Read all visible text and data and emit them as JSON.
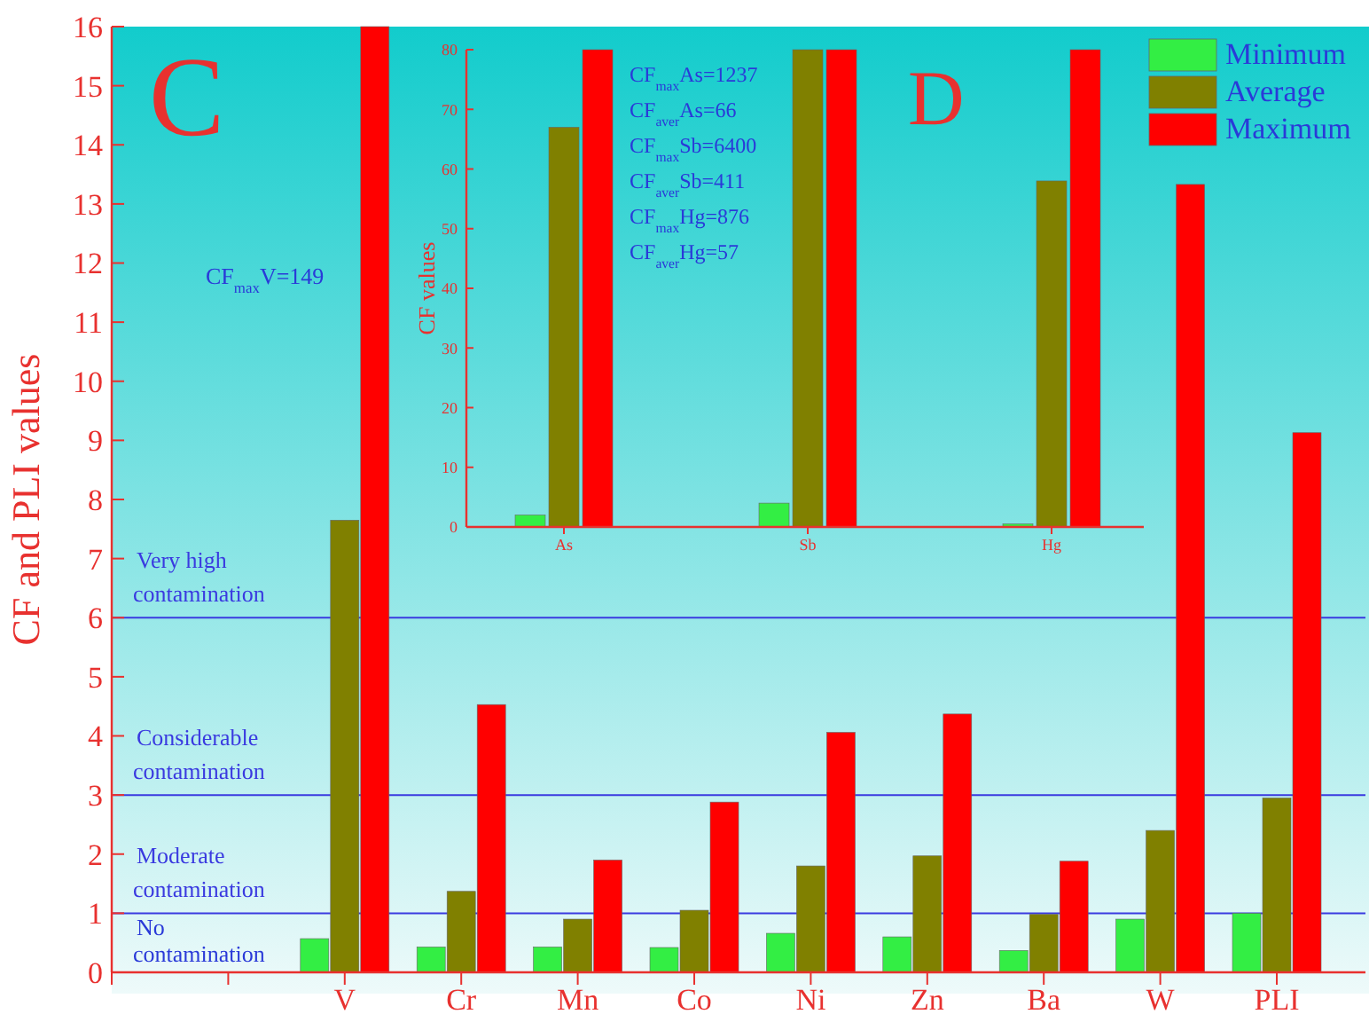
{
  "chart_data": [
    {
      "type": "bar",
      "ylabel": "CF and PLI values",
      "categories": [
        null,
        null,
        "V",
        "Cr",
        "Mn",
        "Co",
        "Ni",
        "Zn",
        "Ba",
        "W",
        "PLI"
      ],
      "series": [
        {
          "name": "Minimum",
          "color": "#33ee44",
          "values": [
            null,
            null,
            0.57,
            0.43,
            0.43,
            0.42,
            0.66,
            0.6,
            0.37,
            0.9,
            1.0
          ]
        },
        {
          "name": "Average",
          "color": "#808000",
          "values": [
            null,
            null,
            7.65,
            1.37,
            0.9,
            1.05,
            1.8,
            1.97,
            0.98,
            2.4,
            2.95
          ]
        },
        {
          "name": "Maximum",
          "color": "#ff0000",
          "values": [
            null,
            null,
            16,
            4.53,
            1.9,
            2.88,
            4.06,
            4.37,
            1.88,
            13.33,
            9.13
          ]
        }
      ],
      "ylim": [
        0,
        16
      ],
      "yticks": [
        0,
        1,
        2,
        3,
        4,
        5,
        6,
        7,
        8,
        9,
        10,
        11,
        12,
        13,
        14,
        15,
        16
      ],
      "ref_lines": [
        {
          "axis": "y",
          "value": 1,
          "label": "Moderate contamination",
          "color": "#3a3ae0"
        },
        {
          "axis": "y",
          "value": 3,
          "label": "Considerable contamination",
          "color": "#3a3ae0"
        },
        {
          "axis": "y",
          "value": 6,
          "label": "Very high contamination",
          "color": "#3a3ae0"
        }
      ],
      "annotations": [
        "C",
        "CF$_{max}$V=149",
        "No contamination"
      ],
      "legend": "top right"
    },
    {
      "type": "bar",
      "ylabel": "CF values",
      "categories": [
        "As",
        "Sb",
        "Hg"
      ],
      "series": [
        {
          "color": "#33ee44",
          "values": [
            2,
            4,
            0.5
          ]
        },
        {
          "color": "#808000",
          "values": [
            67,
            80,
            58
          ]
        },
        {
          "color": "#ff0000",
          "values": [
            80,
            80,
            80
          ]
        }
      ],
      "ylim": [
        0,
        80
      ],
      "yticks": [
        0,
        10,
        20,
        30,
        40,
        50,
        60,
        70,
        80
      ],
      "annotations": [
        "D",
        "CF$_{max}$As=1237",
        "CF$_{aver}$As=66",
        "CF$_{max}$Sb=6400",
        "CF$_{aver}$Sb=411",
        "CF$_{max}$Hg=876",
        "CF$_{aver}$Hg=57"
      ]
    }
  ]
}
